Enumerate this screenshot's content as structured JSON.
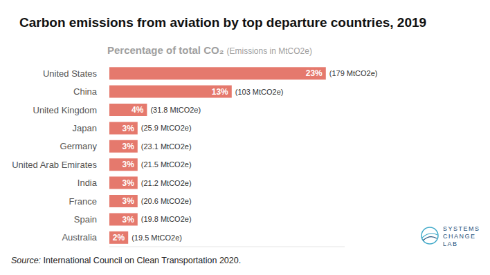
{
  "chart_data": {
    "type": "bar",
    "orientation": "horizontal",
    "title": "Carbon emissions from aviation by top departure countries, 2019",
    "subtitle": "Percentage of total CO₂ (Emissions in MtCO2e)",
    "categories": [
      "United States",
      "China",
      "United Kingdom",
      "Japan",
      "Germany",
      "United Arab Emirates",
      "India",
      "France",
      "Spain",
      "Australia"
    ],
    "values": [
      23,
      13,
      4,
      3,
      3,
      3,
      3,
      3,
      3,
      2
    ],
    "value_labels": [
      "23%",
      "13%",
      "4%",
      "3%",
      "3%",
      "3%",
      "3%",
      "3%",
      "3%",
      "2%"
    ],
    "emission_labels": [
      "(179 MtCO2e)",
      "(103 MtCO2e)",
      "(31.8 MtCO2e)",
      "(25.9 MtCO2e)",
      "(23.1 MtCO2e)",
      "(21.5 MtCO2e)",
      "(21.2 MtCO2e)",
      "(20.6 MtCO2e)",
      "(19.8 MtCO2e)",
      "(19.5 MtCO2e)"
    ],
    "color": "#e5796d",
    "data_labels": true,
    "tick_labels": "y",
    "xlim": [
      0,
      25
    ],
    "xticks": [],
    "source_label": "Source:",
    "source": "International Council on Clean Transportation 2020.",
    "logo": [
      "SYSTEMS",
      "CHANGE",
      "LAB"
    ]
  }
}
